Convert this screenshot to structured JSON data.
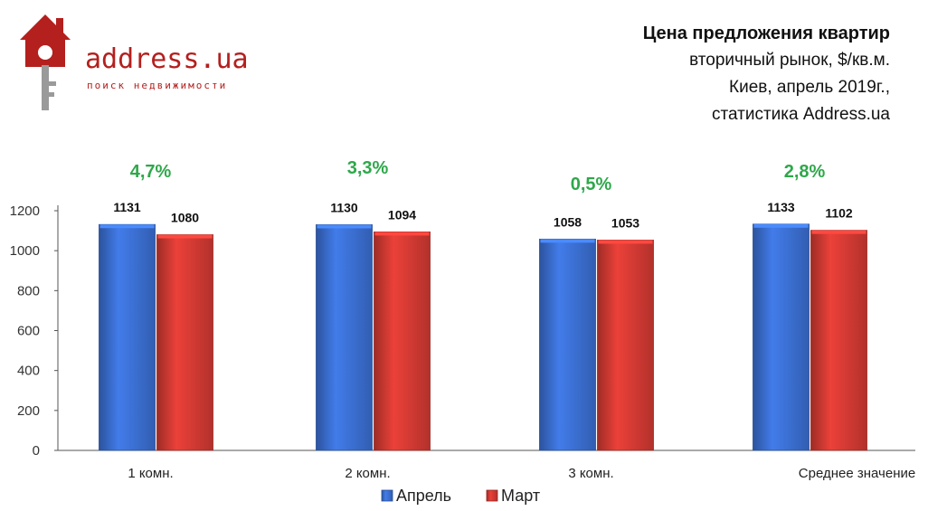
{
  "brand": {
    "name": "address.ua",
    "tagline": "поиск недвижимости",
    "color": "#b3201e"
  },
  "chart_data": {
    "type": "bar",
    "title": "Цена предложения квартир",
    "subtitle_lines": [
      "вторичный рынок, $/кв.м.",
      "Киев, апрель 2019г.,",
      "статистика Address.ua"
    ],
    "categories": [
      "1 комн.",
      "2 комн.",
      "3 комн.",
      "Среднее значение"
    ],
    "series": [
      {
        "name": "Апрель",
        "values": [
          1131,
          1130,
          1058,
          1133
        ],
        "color": "#3b6fd1"
      },
      {
        "name": "Март",
        "values": [
          1080,
          1094,
          1053,
          1102
        ],
        "color": "#d23a33"
      }
    ],
    "change_labels": [
      "4,7%",
      "3,3%",
      "0,5%",
      "2,8%"
    ],
    "change_color": "#2ea84a",
    "ylim": [
      0,
      1200
    ],
    "yticks": [
      0,
      200,
      400,
      600,
      800,
      1000,
      1200
    ],
    "grid": false,
    "legend": "bottom"
  }
}
